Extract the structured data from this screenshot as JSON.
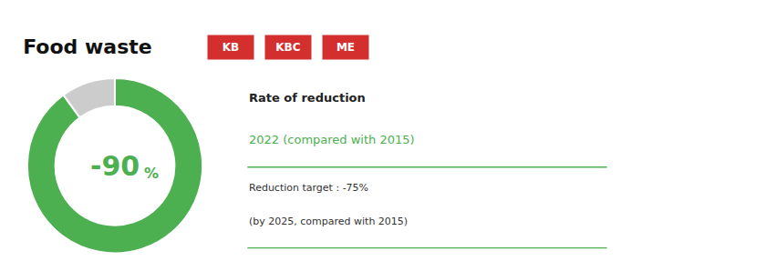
{
  "chart_data": {
    "type": "donut",
    "title": "Food waste",
    "values": [
      90,
      10
    ],
    "colors": [
      "#4caf50",
      "#cccccc"
    ],
    "annotations": [
      {
        "text": "KB",
        "color": "#ffffff",
        "bgcolor": "#d32f2f"
      },
      {
        "text": "KBC",
        "color": "#ffffff",
        "bgcolor": "#d32f2f"
      },
      {
        "text": "ME",
        "color": "#ffffff",
        "bgcolor": "#d32f2f"
      },
      {
        "text": "-90",
        "color": "#4caf50"
      },
      {
        "text": "%",
        "color": "#4caf50"
      },
      {
        "text": "Rate of reduction",
        "color": "#222222"
      },
      {
        "text": "2022 (compared with 2015)",
        "color": "#4caf50"
      },
      {
        "text": "Reduction target : -75%",
        "color": "#333333"
      },
      {
        "text": "(by 2025, compared with 2015)",
        "color": "#333333"
      }
    ]
  }
}
